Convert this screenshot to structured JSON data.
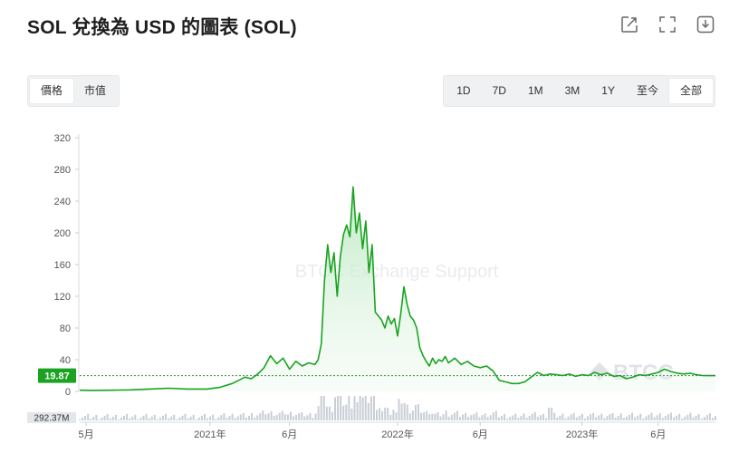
{
  "title": "SOL 兌換為 USD 的圖表 (SOL)",
  "icons": [
    "share-icon",
    "fullscreen-icon",
    "download-icon"
  ],
  "metric_tabs": [
    {
      "label": "價格",
      "active": true
    },
    {
      "label": "市值",
      "active": false
    }
  ],
  "range_tabs": [
    {
      "label": "1D",
      "active": false
    },
    {
      "label": "7D",
      "active": false
    },
    {
      "label": "1M",
      "active": false
    },
    {
      "label": "3M",
      "active": false
    },
    {
      "label": "1Y",
      "active": false
    },
    {
      "label": "至今",
      "active": false
    },
    {
      "label": "全部",
      "active": true
    }
  ],
  "watermark": "BTCC Exchange Support",
  "watermark_logo": "BTCC",
  "colors": {
    "line": "#1aa321",
    "fill_top": "#b9e8bf",
    "price_tag": "#1aa321",
    "volume": "#c9ced6"
  },
  "chart_data": {
    "type": "area",
    "title": "SOL 兌換為 USD 的圖表 (SOL)",
    "xlabel": "",
    "ylabel": "",
    "ylim": [
      0,
      320
    ],
    "y_ticks": [
      0,
      40,
      80,
      120,
      160,
      200,
      240,
      280,
      320
    ],
    "x_ticks": [
      "5月",
      "2021年",
      "6月",
      "2022年",
      "6月",
      "2023年",
      "6月"
    ],
    "x_tick_pos": [
      0.01,
      0.205,
      0.33,
      0.5,
      0.63,
      0.79,
      0.91
    ],
    "current_price": "19.87",
    "current_value": 19.87,
    "volume_label": "292.37M",
    "grid": false,
    "series": [
      {
        "t": [
          0,
          0.02,
          0.05,
          0.08,
          0.11,
          0.14,
          0.17,
          0.2,
          0.22,
          0.24,
          0.25,
          0.26,
          0.27,
          0.28,
          0.29,
          0.3,
          0.31,
          0.32,
          0.33,
          0.34,
          0.35,
          0.36,
          0.37,
          0.375,
          0.38,
          0.385,
          0.39,
          0.395,
          0.4,
          0.405,
          0.41,
          0.415,
          0.42,
          0.425,
          0.43,
          0.435,
          0.44,
          0.445,
          0.45,
          0.455,
          0.46,
          0.465,
          0.47,
          0.475,
          0.48,
          0.485,
          0.49,
          0.495,
          0.5,
          0.505,
          0.51,
          0.515,
          0.52,
          0.525,
          0.53,
          0.535,
          0.54,
          0.545,
          0.55,
          0.555,
          0.56,
          0.565,
          0.57,
          0.575,
          0.58,
          0.59,
          0.6,
          0.61,
          0.62,
          0.63,
          0.64,
          0.65,
          0.66,
          0.67,
          0.68,
          0.69,
          0.7,
          0.71,
          0.72,
          0.73,
          0.74,
          0.75,
          0.76,
          0.77,
          0.78,
          0.79,
          0.8,
          0.81,
          0.82,
          0.83,
          0.84,
          0.85,
          0.86,
          0.87,
          0.88,
          0.89,
          0.9,
          0.91,
          0.92,
          0.93,
          0.94,
          0.95,
          0.96,
          0.97,
          0.98,
          0.99,
          1.0
        ],
        "values": [
          1.5,
          1.2,
          1.5,
          2,
          3,
          4,
          3,
          3,
          5,
          10,
          14,
          18,
          16,
          22,
          30,
          45,
          35,
          42,
          28,
          38,
          32,
          36,
          34,
          40,
          60,
          140,
          185,
          150,
          175,
          120,
          170,
          198,
          210,
          195,
          258,
          200,
          225,
          180,
          215,
          150,
          185,
          100,
          95,
          90,
          80,
          95,
          85,
          92,
          70,
          98,
          132,
          110,
          95,
          90,
          80,
          55,
          45,
          38,
          32,
          42,
          35,
          40,
          38,
          44,
          36,
          42,
          34,
          38,
          32,
          30,
          32,
          26,
          14,
          12,
          10,
          10,
          12,
          18,
          24,
          20,
          22,
          21,
          20,
          22,
          19,
          21,
          20,
          24,
          21,
          23,
          19,
          20,
          16,
          18,
          21,
          20,
          22,
          24,
          28,
          25,
          23,
          22,
          23,
          21,
          20,
          19.87,
          19.87
        ]
      }
    ]
  }
}
